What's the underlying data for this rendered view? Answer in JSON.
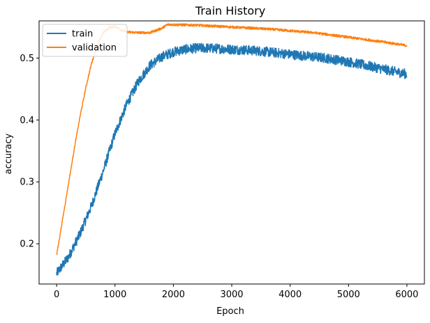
{
  "chart_data": {
    "type": "line",
    "title": "Train History",
    "xlabel": "Epoch",
    "ylabel": "accuracy",
    "xlim": [
      -300,
      6300
    ],
    "ylim": [
      0.135,
      0.56
    ],
    "xticks": [
      0,
      1000,
      2000,
      3000,
      4000,
      5000,
      6000
    ],
    "yticks": [
      0.2,
      0.3,
      0.4,
      0.5
    ],
    "xtick_labels": [
      "0",
      "1000",
      "2000",
      "3000",
      "4000",
      "5000",
      "6000"
    ],
    "ytick_labels": [
      "0.2",
      "0.3",
      "0.4",
      "0.5"
    ],
    "legend_position": "top-left",
    "grid": false,
    "series": [
      {
        "name": "train",
        "color": "#1f77b4",
        "noise_band": 0.008,
        "x": [
          0,
          200,
          400,
          600,
          800,
          1000,
          1200,
          1400,
          1600,
          1800,
          2000,
          2200,
          2400,
          2600,
          2800,
          3000,
          3200,
          3400,
          3600,
          3800,
          4000,
          4200,
          4400,
          4600,
          4800,
          5000,
          5200,
          5400,
          5600,
          5800,
          6000
        ],
        "values": [
          0.152,
          0.178,
          0.216,
          0.262,
          0.318,
          0.378,
          0.425,
          0.462,
          0.488,
          0.502,
          0.51,
          0.514,
          0.516,
          0.516,
          0.515,
          0.514,
          0.513,
          0.512,
          0.51,
          0.508,
          0.506,
          0.504,
          0.502,
          0.5,
          0.497,
          0.494,
          0.49,
          0.486,
          0.482,
          0.478,
          0.474
        ]
      },
      {
        "name": "validation",
        "color": "#ff7f0e",
        "noise_band": 0.002,
        "x": [
          0,
          100,
          200,
          300,
          400,
          500,
          600,
          700,
          800,
          900,
          1000,
          1100,
          1200,
          1400,
          1600,
          1800,
          1900,
          2000,
          2400,
          2800,
          3200,
          3600,
          4000,
          4400,
          4800,
          5200,
          5600,
          6000
        ],
        "values": [
          0.181,
          0.238,
          0.295,
          0.352,
          0.405,
          0.452,
          0.492,
          0.521,
          0.541,
          0.549,
          0.551,
          0.546,
          0.542,
          0.541,
          0.541,
          0.548,
          0.554,
          0.554,
          0.553,
          0.551,
          0.549,
          0.547,
          0.544,
          0.541,
          0.536,
          0.531,
          0.526,
          0.52
        ]
      }
    ]
  }
}
